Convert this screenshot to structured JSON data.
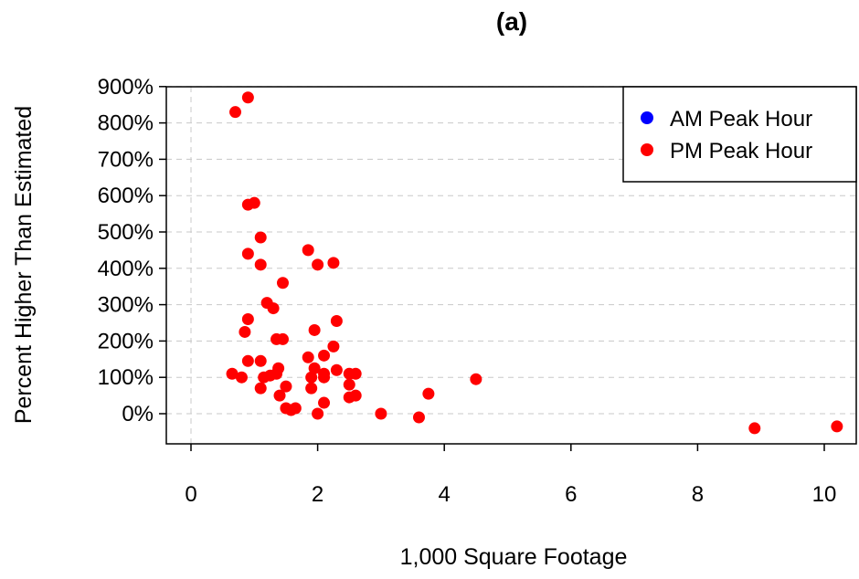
{
  "chart_data": {
    "type": "scatter",
    "title": "(a)",
    "xlabel": "1,000 Square Footage",
    "ylabel": "Percent Higher Than Estimated",
    "xlim": [
      -0.4,
      10.4
    ],
    "ylim": [
      -80,
      910
    ],
    "x_ticks": [
      0,
      2,
      4,
      6,
      8,
      10
    ],
    "y_ticks": [
      0,
      100,
      200,
      300,
      400,
      500,
      600,
      700,
      800,
      900
    ],
    "y_tick_labels": [
      "0%",
      "100%",
      "200%",
      "300%",
      "400%",
      "500%",
      "600%",
      "700%",
      "800%",
      "900%"
    ],
    "grid": "dashed gray gridlines at y ticks and at x = 0",
    "legend": {
      "position": "top-right"
    },
    "series": [
      {
        "name": "AM Peak Hour",
        "color": "#0000ff",
        "points": []
      },
      {
        "name": "PM Peak Hour",
        "color": "#ff0000",
        "points": [
          [
            0.7,
            830
          ],
          [
            0.9,
            870
          ],
          [
            0.9,
            575
          ],
          [
            1.0,
            580
          ],
          [
            1.1,
            485
          ],
          [
            0.9,
            440
          ],
          [
            1.1,
            410
          ],
          [
            1.45,
            360
          ],
          [
            1.85,
            450
          ],
          [
            2.0,
            410
          ],
          [
            2.25,
            415
          ],
          [
            1.2,
            305
          ],
          [
            1.3,
            290
          ],
          [
            0.9,
            260
          ],
          [
            0.85,
            225
          ],
          [
            1.35,
            205
          ],
          [
            1.45,
            205
          ],
          [
            1.95,
            230
          ],
          [
            2.3,
            255
          ],
          [
            2.25,
            185
          ],
          [
            1.85,
            155
          ],
          [
            2.1,
            160
          ],
          [
            0.9,
            145
          ],
          [
            1.1,
            145
          ],
          [
            1.95,
            125
          ],
          [
            2.3,
            120
          ],
          [
            0.65,
            110
          ],
          [
            0.8,
            100
          ],
          [
            1.15,
            100
          ],
          [
            1.25,
            105
          ],
          [
            1.35,
            110
          ],
          [
            1.38,
            125
          ],
          [
            1.9,
            100
          ],
          [
            2.1,
            100
          ],
          [
            2.1,
            110
          ],
          [
            2.5,
            110
          ],
          [
            2.6,
            110
          ],
          [
            2.5,
            80
          ],
          [
            1.1,
            70
          ],
          [
            1.5,
            75
          ],
          [
            1.9,
            70
          ],
          [
            1.4,
            50
          ],
          [
            2.5,
            45
          ],
          [
            2.6,
            50
          ],
          [
            2.1,
            30
          ],
          [
            1.5,
            15
          ],
          [
            1.65,
            15
          ],
          [
            1.58,
            10
          ],
          [
            2.0,
            0
          ],
          [
            3.0,
            0
          ],
          [
            3.6,
            -10
          ],
          [
            3.75,
            55
          ],
          [
            4.5,
            95
          ],
          [
            8.9,
            -40
          ],
          [
            10.2,
            -35
          ]
        ]
      }
    ]
  }
}
